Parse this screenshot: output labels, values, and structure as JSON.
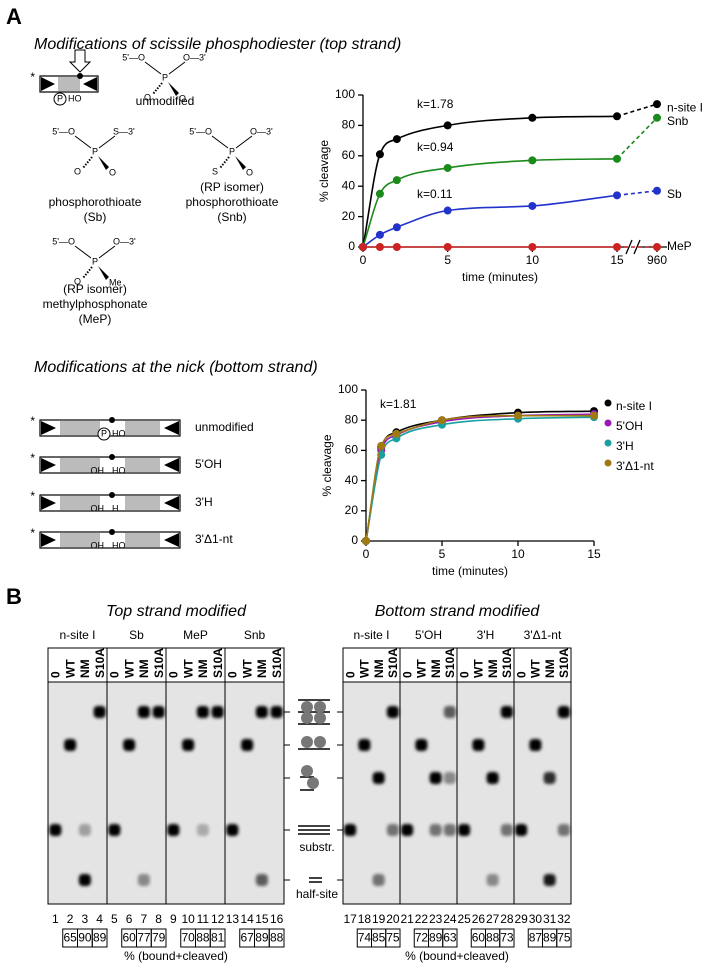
{
  "panel_a": {
    "label": "A",
    "top_title": "Modifications of scissile phosphodiester (top strand)",
    "duplex": {
      "star": "*",
      "p": "P",
      "ho": "HO"
    },
    "structures": [
      {
        "left": "5'—O",
        "right": "O—3'",
        "center": "P",
        "lower_left": "O",
        "lower_right": "O",
        "captions": [
          "unmodified"
        ],
        "color": "#000000"
      },
      {
        "left": "5'—O",
        "right": "S—3'",
        "center": "P",
        "lower_left": "O",
        "lower_right": "O",
        "captions": [
          "phosphorothioate",
          "(Sb)"
        ],
        "color": "#2233cc"
      },
      {
        "left": "5'—O",
        "right": "O—3'",
        "center": "P",
        "lower_left": "S",
        "lower_right": "O",
        "captions": [
          "(RP isomer)",
          "phosphorothioate",
          "(Snb)"
        ],
        "color": "#1a8a1a"
      },
      {
        "left": "5'—O",
        "right": "O—3'",
        "center": "P",
        "lower_left": "O",
        "lower_right": "Me",
        "captions": [
          "(RP isomer)",
          "methylphosphonate",
          "(MeP)"
        ],
        "color": "#cc2222"
      }
    ],
    "bottom_title": "Modifications at the nick (bottom strand)",
    "nick_schemes": [
      {
        "star": "*",
        "marks": [
          "P",
          "HO"
        ],
        "label": "unmodified",
        "color": "#000000"
      },
      {
        "star": "*",
        "marks": [
          "OH",
          "HO"
        ],
        "label": "5'OH",
        "color": "#9a1ab8"
      },
      {
        "star": "*",
        "marks": [
          "OH",
          "H"
        ],
        "label": "3'H",
        "color": "#1aa0a0"
      },
      {
        "star": "*",
        "marks": [
          "OH",
          "HO"
        ],
        "label": "3'Δ1-nt",
        "color": "#a07a10"
      }
    ]
  },
  "chart_data": [
    {
      "type": "line",
      "x_label": "time (minutes)",
      "y_label": "% cleavage",
      "x": [
        0,
        1,
        2,
        5,
        10,
        15,
        960
      ],
      "xlim": [
        0,
        15
      ],
      "x_break": true,
      "xticks": [
        0,
        5,
        10,
        15,
        960
      ],
      "ylim": [
        0,
        100
      ],
      "yticks": [
        0,
        20,
        40,
        60,
        80,
        100
      ],
      "legend": "line-end",
      "series": [
        {
          "name": "n-site I",
          "color": "#000000",
          "values": [
            0,
            61,
            71,
            80,
            85,
            86,
            94
          ],
          "k_label": "k=1.78"
        },
        {
          "name": "Snb",
          "color": "#1a8a1a",
          "values": [
            0,
            35,
            44,
            52,
            57,
            58,
            85
          ],
          "k_label": "k=0.94"
        },
        {
          "name": "Sb",
          "color": "#2233cc",
          "values": [
            0,
            8,
            13,
            24,
            27,
            34,
            37
          ],
          "k_label": "k=0.11"
        },
        {
          "name": "MeP",
          "color": "#cc2222",
          "values": [
            0,
            0,
            0,
            0,
            0,
            0,
            0
          ]
        }
      ]
    },
    {
      "type": "line",
      "x_label": "time (minutes)",
      "y_label": "% cleavage",
      "x": [
        0,
        1,
        2,
        5,
        10,
        15
      ],
      "xlim": [
        0,
        15
      ],
      "xticks": [
        0,
        5,
        10,
        15
      ],
      "ylim": [
        0,
        100
      ],
      "yticks": [
        0,
        20,
        40,
        60,
        80,
        100
      ],
      "legend": "right",
      "annotation": "k=1.81",
      "series": [
        {
          "name": "n-site I",
          "color": "#000000",
          "values": [
            0,
            62,
            72,
            80,
            85,
            86
          ]
        },
        {
          "name": "5'OH",
          "color": "#9a1ab8",
          "values": [
            0,
            60,
            70,
            79,
            83,
            84
          ]
        },
        {
          "name": "3'H",
          "color": "#1aa0a0",
          "values": [
            0,
            57,
            68,
            77,
            81,
            82
          ]
        },
        {
          "name": "3'Δ1-nt",
          "color": "#a07a10",
          "values": [
            0,
            63,
            71,
            80,
            83,
            83
          ]
        }
      ]
    }
  ],
  "panel_b": {
    "label": "B",
    "markers": [
      "substr.",
      "half-site"
    ],
    "gels": [
      {
        "title": "Top strand modified",
        "footer": "% (bound+cleaved)",
        "groups": [
          {
            "name": "n-site I",
            "color": "#000000",
            "lanes": [
              "0",
              "WT",
              "NM",
              "S10A"
            ],
            "numbers": [
              1,
              2,
              3,
              4
            ],
            "percent": [
              65,
              90,
              89
            ]
          },
          {
            "name": "Sb",
            "color": "#2233cc",
            "lanes": [
              "0",
              "WT",
              "NM",
              "S10A"
            ],
            "numbers": [
              5,
              6,
              7,
              8
            ],
            "percent": [
              60,
              77,
              79
            ]
          },
          {
            "name": "MeP",
            "color": "#cc2222",
            "lanes": [
              "0",
              "WT",
              "NM",
              "S10A"
            ],
            "numbers": [
              9,
              10,
              11,
              12
            ],
            "percent": [
              70,
              88,
              81
            ]
          },
          {
            "name": "Snb",
            "color": "#1a8a1a",
            "lanes": [
              "0",
              "WT",
              "NM",
              "S10A"
            ],
            "numbers": [
              13,
              14,
              15,
              16
            ],
            "percent": [
              67,
              89,
              88
            ]
          }
        ]
      },
      {
        "title": "Bottom strand modified",
        "footer": "% (bound+cleaved)",
        "groups": [
          {
            "name": "n-site I",
            "color": "#000000",
            "lanes": [
              "0",
              "WT",
              "NM",
              "S10A"
            ],
            "numbers": [
              17,
              18,
              19,
              20
            ],
            "percent": [
              74,
              85,
              75
            ]
          },
          {
            "name": "5'OH",
            "color": "#9a1ab8",
            "lanes": [
              "0",
              "WT",
              "NM",
              "S10A"
            ],
            "numbers": [
              21,
              22,
              23,
              24
            ],
            "percent": [
              72,
              89,
              63
            ]
          },
          {
            "name": "3'H",
            "color": "#1aa0a0",
            "lanes": [
              "0",
              "WT",
              "NM",
              "S10A"
            ],
            "numbers": [
              25,
              26,
              27,
              28
            ],
            "percent": [
              60,
              88,
              73
            ]
          },
          {
            "name": "3'Δ1-nt",
            "color": "#a07a10",
            "lanes": [
              "0",
              "WT",
              "NM",
              "S10A"
            ],
            "numbers": [
              29,
              30,
              31,
              32
            ],
            "percent": [
              87,
              89,
              75
            ]
          }
        ]
      }
    ]
  }
}
